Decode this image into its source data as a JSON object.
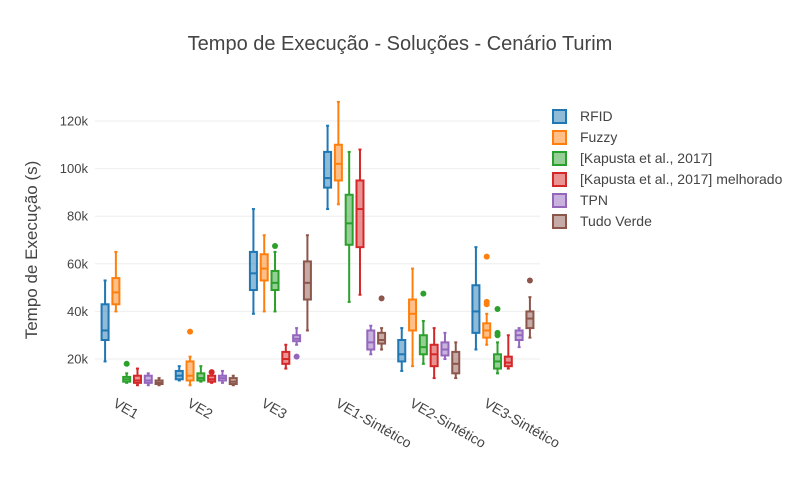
{
  "chart_data": {
    "type": "box",
    "title": "Tempo de Execução - Soluções - Cenário Turim",
    "xlabel": "",
    "ylabel": "Tempo de Execução (s)",
    "ylim": [
      7000,
      133000
    ],
    "yticks": [
      20000,
      40000,
      60000,
      80000,
      100000,
      120000
    ],
    "ytick_labels": [
      "20k",
      "40k",
      "60k",
      "80k",
      "100k",
      "120k"
    ],
    "grid": true,
    "legend_position": "right",
    "categories": [
      "VE1",
      "VE2",
      "VE3",
      "VE1-Sintético",
      "VE2-Sintético",
      "VE3-Sintético"
    ],
    "series": [
      {
        "name": "RFID",
        "color": "#1f77b4",
        "boxes": [
          {
            "min": 19000,
            "q1": 28000,
            "median": 32000,
            "q3": 43000,
            "max": 53000,
            "outliers": []
          },
          {
            "min": 11000,
            "q1": 11500,
            "median": 13000,
            "q3": 15000,
            "max": 17000,
            "outliers": []
          },
          {
            "min": 39000,
            "q1": 49000,
            "median": 56000,
            "q3": 65000,
            "max": 83000,
            "outliers": []
          },
          {
            "min": 83000,
            "q1": 92000,
            "median": 96000,
            "q3": 107000,
            "max": 118000,
            "outliers": []
          },
          {
            "min": 15000,
            "q1": 19000,
            "median": 22000,
            "q3": 28000,
            "max": 33000,
            "outliers": []
          },
          {
            "min": 24000,
            "q1": 31000,
            "median": 40000,
            "q3": 51000,
            "max": 67000,
            "outliers": []
          }
        ]
      },
      {
        "name": "Fuzzy",
        "color": "#ff7f0e",
        "boxes": [
          {
            "min": 40000,
            "q1": 43000,
            "median": 48000,
            "q3": 54000,
            "max": 65000,
            "outliers": []
          },
          {
            "min": 9000,
            "q1": 11000,
            "median": 13000,
            "q3": 19000,
            "max": 21000,
            "outliers": [
              31500
            ]
          },
          {
            "min": 40000,
            "q1": 53000,
            "median": 58000,
            "q3": 64000,
            "max": 72000,
            "outliers": []
          },
          {
            "min": 85000,
            "q1": 95000,
            "median": 102000,
            "q3": 110000,
            "max": 128000,
            "outliers": []
          },
          {
            "min": 17000,
            "q1": 32000,
            "median": 39000,
            "q3": 45000,
            "max": 58000,
            "outliers": []
          },
          {
            "min": 26000,
            "q1": 29000,
            "median": 32000,
            "q3": 35000,
            "max": 39000,
            "outliers": [
              63000,
              44000,
              43000
            ]
          }
        ]
      },
      {
        "name": "[Kapusta et al., 2017]",
        "color": "#2ca02c",
        "boxes": [
          {
            "min": 10000,
            "q1": 10500,
            "median": 11500,
            "q3": 12500,
            "max": 14000,
            "outliers": [
              18000
            ]
          },
          {
            "min": 10500,
            "q1": 11000,
            "median": 12000,
            "q3": 14000,
            "max": 17000,
            "outliers": []
          },
          {
            "min": 40000,
            "q1": 49000,
            "median": 52000,
            "q3": 57000,
            "max": 65000,
            "outliers": [
              67500
            ]
          },
          {
            "min": 44000,
            "q1": 68000,
            "median": 77000,
            "q3": 89000,
            "max": 107000,
            "outliers": []
          },
          {
            "min": 18000,
            "q1": 22000,
            "median": 25000,
            "q3": 30000,
            "max": 36000,
            "outliers": [
              47500
            ]
          },
          {
            "min": 14000,
            "q1": 16000,
            "median": 19000,
            "q3": 22000,
            "max": 27000,
            "outliers": [
              41000,
              31000,
              30000
            ]
          }
        ]
      },
      {
        "name": "[Kapusta et al., 2017] melhorado",
        "color": "#d62728",
        "boxes": [
          {
            "min": 9000,
            "q1": 10000,
            "median": 11000,
            "q3": 13000,
            "max": 16000,
            "outliers": []
          },
          {
            "min": 10000,
            "q1": 10500,
            "median": 11500,
            "q3": 13000,
            "max": 15000,
            "outliers": [
              14500
            ]
          },
          {
            "min": 16000,
            "q1": 18000,
            "median": 20000,
            "q3": 23000,
            "max": 26000,
            "outliers": []
          },
          {
            "min": 47000,
            "q1": 67000,
            "median": 83000,
            "q3": 95000,
            "max": 108000,
            "outliers": []
          },
          {
            "min": 12000,
            "q1": 17000,
            "median": 22000,
            "q3": 26000,
            "max": 33000,
            "outliers": []
          },
          {
            "min": 16000,
            "q1": 17000,
            "median": 18500,
            "q3": 21000,
            "max": 30000,
            "outliers": []
          }
        ]
      },
      {
        "name": "TPN",
        "color": "#9467bd",
        "boxes": [
          {
            "min": 9000,
            "q1": 10000,
            "median": 11000,
            "q3": 13000,
            "max": 14000,
            "outliers": []
          },
          {
            "min": 10000,
            "q1": 11000,
            "median": 12000,
            "q3": 13000,
            "max": 15000,
            "outliers": []
          },
          {
            "min": 26000,
            "q1": 27500,
            "median": 28500,
            "q3": 30000,
            "max": 33000,
            "outliers": [
              21000
            ]
          },
          {
            "min": 22000,
            "q1": 24000,
            "median": 27000,
            "q3": 32000,
            "max": 34000,
            "outliers": []
          },
          {
            "min": 20000,
            "q1": 21500,
            "median": 24000,
            "q3": 27000,
            "max": 31000,
            "outliers": []
          },
          {
            "min": 25000,
            "q1": 28000,
            "median": 30000,
            "q3": 32000,
            "max": 33000,
            "outliers": []
          }
        ]
      },
      {
        "name": "Tudo Verde",
        "color": "#8c564b",
        "boxes": [
          {
            "min": 9000,
            "q1": 9500,
            "median": 10000,
            "q3": 11000,
            "max": 12000,
            "outliers": []
          },
          {
            "min": 9000,
            "q1": 9500,
            "median": 10500,
            "q3": 12000,
            "max": 13000,
            "outliers": []
          },
          {
            "min": 32000,
            "q1": 45000,
            "median": 52000,
            "q3": 61000,
            "max": 72000,
            "outliers": []
          },
          {
            "min": 24000,
            "q1": 26500,
            "median": 28000,
            "q3": 31000,
            "max": 33000,
            "outliers": [
              45500
            ]
          },
          {
            "min": 12000,
            "q1": 14000,
            "median": 18000,
            "q3": 23000,
            "max": 27000,
            "outliers": []
          },
          {
            "min": 29000,
            "q1": 33000,
            "median": 37000,
            "q3": 40000,
            "max": 46000,
            "outliers": [
              53000
            ]
          }
        ]
      }
    ]
  }
}
